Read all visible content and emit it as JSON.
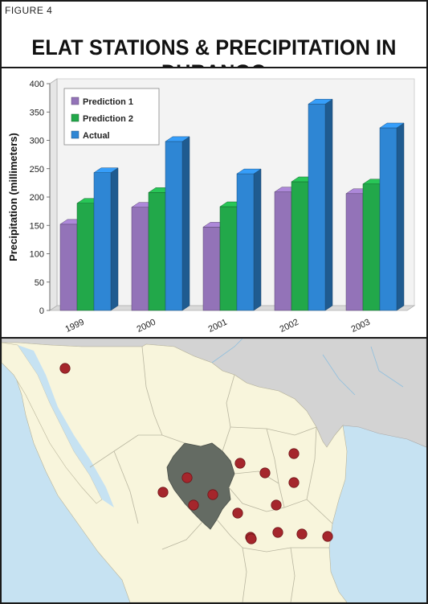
{
  "figure_label": "FIGURE 4",
  "title": "ELAT STATIONS & PRECIPITATION IN DURANGO",
  "chart_data": {
    "type": "bar",
    "categories": [
      "1999",
      "2000",
      "2001",
      "2002",
      "2003"
    ],
    "series": [
      {
        "name": "Prediction 1",
        "values": [
          152,
          182,
          147,
          209,
          206
        ],
        "color": "#9373b8"
      },
      {
        "name": "Prediction 2",
        "values": [
          189,
          208,
          183,
          227,
          223
        ],
        "color": "#22a84a"
      },
      {
        "name": "Actual",
        "values": [
          243,
          298,
          241,
          364,
          322
        ],
        "color": "#2e86d4"
      }
    ],
    "ylabel": "Precipitation (millimeters)",
    "xlabel": "",
    "ylim": [
      0,
      400
    ],
    "yticks": [
      0,
      50,
      100,
      150,
      200,
      250,
      300,
      350,
      400
    ],
    "grid": false,
    "legend_position": "top-left",
    "style": "3d"
  },
  "map": {
    "colors": {
      "ocean": "#c6e2f2",
      "land": "#f8f5dc",
      "usa": "#d3d3d3",
      "durango": "#646b63",
      "station": "#a5262c"
    },
    "station_count": 16
  }
}
